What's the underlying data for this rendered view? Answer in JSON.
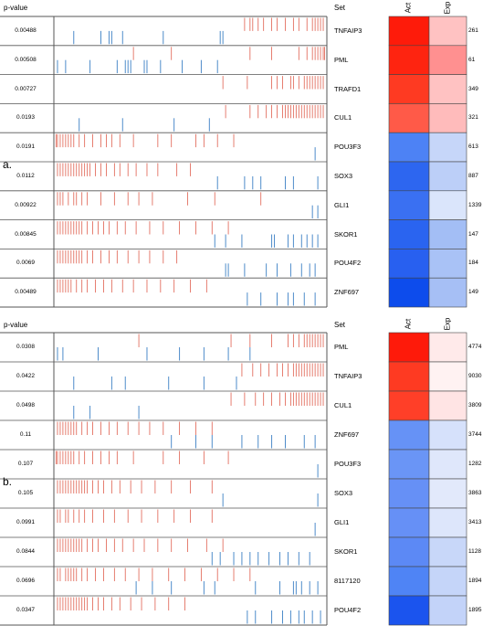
{
  "chart_data": [
    {
      "type": "heatmap",
      "panel_label": "a.",
      "headers": {
        "pvalue": "p-value",
        "set": "Set",
        "act": "Act",
        "exp": "Exp"
      },
      "rows": [
        {
          "p_value": "0.00488",
          "set": "TNFAIP3",
          "count": "261",
          "act_color": "#fe1b0a",
          "exp_color": "#ffc2c2",
          "red": [
            0.7,
            0.72,
            0.73,
            0.75,
            0.77,
            0.8,
            0.82,
            0.85,
            0.88,
            0.9,
            0.93,
            0.95,
            0.96,
            0.97,
            0.98,
            0.99
          ],
          "blue": [
            0.07,
            0.17,
            0.2,
            0.21,
            0.25,
            0.4,
            0.61,
            0.62
          ]
        },
        {
          "p_value": "0.00508",
          "set": "PML",
          "count": "61",
          "act_color": "#fe2410",
          "exp_color": "#ff9090",
          "red": [
            0.29,
            0.43,
            0.72,
            0.8,
            0.9,
            0.93,
            0.95,
            0.96,
            0.97,
            0.98,
            0.99,
            0.995
          ],
          "blue": [
            0.01,
            0.04,
            0.13,
            0.23,
            0.26,
            0.27,
            0.28,
            0.33,
            0.34,
            0.39,
            0.47,
            0.54,
            0.6
          ]
        },
        {
          "p_value": "0.00727",
          "set": "TRAFD1",
          "count": "349",
          "act_color": "#fe3a22",
          "exp_color": "#ffc2c2",
          "red": [
            0.62,
            0.71,
            0.8,
            0.82,
            0.84,
            0.87,
            0.88,
            0.9,
            0.92,
            0.93,
            0.94,
            0.95,
            0.96,
            0.97,
            0.98,
            0.99
          ],
          "blue": []
        },
        {
          "p_value": "0.0193",
          "set": "CUL1",
          "count": "321",
          "act_color": "#ff5a48",
          "exp_color": "#ffbbbb",
          "red": [
            0.63,
            0.72,
            0.75,
            0.78,
            0.8,
            0.82,
            0.84,
            0.85,
            0.86,
            0.87,
            0.88,
            0.89,
            0.9,
            0.91,
            0.92,
            0.93,
            0.94,
            0.95,
            0.96,
            0.97,
            0.98,
            0.99
          ],
          "blue": [
            0.09,
            0.25,
            0.44,
            0.57
          ]
        },
        {
          "p_value": "0.0191",
          "set": "POU3F3",
          "count": "613",
          "act_color": "#4d82f5",
          "exp_color": "#c6d6f9",
          "red": [
            0.005,
            0.01,
            0.02,
            0.03,
            0.04,
            0.05,
            0.06,
            0.07,
            0.09,
            0.11,
            0.14,
            0.17,
            0.19,
            0.21,
            0.24,
            0.29,
            0.38,
            0.43,
            0.52,
            0.55,
            0.6,
            0.66
          ],
          "blue": [
            0.96
          ]
        },
        {
          "p_value": "0.0112",
          "set": "SOX3",
          "count": "887",
          "act_color": "#2d66f0",
          "exp_color": "#bccff8",
          "red": [
            0.01,
            0.02,
            0.03,
            0.04,
            0.05,
            0.06,
            0.07,
            0.08,
            0.09,
            0.1,
            0.11,
            0.12,
            0.13,
            0.15,
            0.17,
            0.19,
            0.22,
            0.24,
            0.27,
            0.3,
            0.34,
            0.38,
            0.45,
            0.5
          ],
          "blue": [
            0.6,
            0.7,
            0.73,
            0.76,
            0.85,
            0.88,
            0.97
          ]
        },
        {
          "p_value": "0.00922",
          "set": "GLI1",
          "count": "1339",
          "act_color": "#3a70f2",
          "exp_color": "#dae5fb",
          "red": [
            0.01,
            0.02,
            0.03,
            0.05,
            0.07,
            0.08,
            0.1,
            0.12,
            0.17,
            0.22,
            0.27,
            0.31,
            0.36,
            0.49,
            0.59,
            0.76
          ],
          "blue": [
            0.95,
            0.97
          ]
        },
        {
          "p_value": "0.00845",
          "set": "SKOR1",
          "count": "147",
          "act_color": "#2a64f0",
          "exp_color": "#a3bef5",
          "red": [
            0.01,
            0.02,
            0.03,
            0.04,
            0.05,
            0.06,
            0.07,
            0.08,
            0.09,
            0.1,
            0.12,
            0.14,
            0.16,
            0.18,
            0.2,
            0.23,
            0.26,
            0.3,
            0.35,
            0.4,
            0.46,
            0.52,
            0.58,
            0.64
          ],
          "blue": [
            0.59,
            0.63,
            0.69,
            0.8,
            0.81,
            0.86,
            0.88,
            0.91,
            0.93,
            0.95,
            0.97
          ]
        },
        {
          "p_value": "0.0069",
          "set": "POU4F2",
          "count": "184",
          "act_color": "#2860f0",
          "exp_color": "#a9c2f6",
          "red": [
            0.01,
            0.02,
            0.03,
            0.04,
            0.05,
            0.06,
            0.07,
            0.08,
            0.09,
            0.1,
            0.12,
            0.14,
            0.17,
            0.2,
            0.23,
            0.27,
            0.31,
            0.35,
            0.4,
            0.45
          ],
          "blue": [
            0.63,
            0.64,
            0.7,
            0.78,
            0.82,
            0.87,
            0.91,
            0.94,
            0.96
          ]
        },
        {
          "p_value": "0.00489",
          "set": "ZNF697",
          "count": "149",
          "act_color": "#0d4cec",
          "exp_color": "#a6bff5",
          "red": [
            0.01,
            0.02,
            0.03,
            0.04,
            0.05,
            0.06,
            0.08,
            0.1,
            0.12,
            0.15,
            0.18,
            0.21,
            0.25,
            0.29,
            0.34,
            0.39,
            0.44,
            0.5,
            0.56
          ],
          "blue": [
            0.71,
            0.76,
            0.82,
            0.86,
            0.88,
            0.92,
            0.96
          ]
        }
      ]
    },
    {
      "type": "heatmap",
      "panel_label": "b.",
      "headers": {
        "pvalue": "p-value",
        "set": "Set",
        "act": "Act",
        "exp": "Exp"
      },
      "rows": [
        {
          "p_value": "0.0308",
          "set": "PML",
          "count": "4774",
          "act_color": "#fe1a0a",
          "exp_color": "#ffeaea",
          "red": [
            0.31,
            0.65,
            0.72,
            0.8,
            0.86,
            0.88,
            0.9,
            0.92,
            0.93,
            0.94,
            0.95,
            0.96,
            0.97,
            0.98,
            0.99
          ],
          "blue": [
            0.01,
            0.03,
            0.16,
            0.34,
            0.46,
            0.55,
            0.64,
            0.72
          ]
        },
        {
          "p_value": "0.0422",
          "set": "TNFAIP3",
          "count": "9030",
          "act_color": "#fe3a22",
          "exp_color": "#fff2f2",
          "red": [
            0.69,
            0.73,
            0.76,
            0.79,
            0.82,
            0.84,
            0.86,
            0.88,
            0.89,
            0.9,
            0.91,
            0.92,
            0.93,
            0.94,
            0.95,
            0.96,
            0.97,
            0.98,
            0.99
          ],
          "blue": [
            0.07,
            0.21,
            0.26,
            0.42,
            0.55,
            0.67
          ]
        },
        {
          "p_value": "0.0498",
          "set": "CUL1",
          "count": "3809",
          "act_color": "#ff3f28",
          "exp_color": "#ffe4e4",
          "red": [
            0.65,
            0.7,
            0.74,
            0.77,
            0.8,
            0.83,
            0.85,
            0.87,
            0.88,
            0.89,
            0.9,
            0.91,
            0.92,
            0.93,
            0.94,
            0.95,
            0.96,
            0.97,
            0.98,
            0.99
          ],
          "blue": [
            0.07,
            0.13,
            0.31
          ]
        },
        {
          "p_value": "0.11",
          "set": "ZNF697",
          "count": "3744",
          "act_color": "#6692f6",
          "exp_color": "#d6e1fb",
          "red": [
            0.01,
            0.02,
            0.03,
            0.04,
            0.05,
            0.06,
            0.07,
            0.08,
            0.1,
            0.12,
            0.14,
            0.17,
            0.2,
            0.23,
            0.27,
            0.31,
            0.35,
            0.4,
            0.46,
            0.52,
            0.58
          ],
          "blue": [
            0.43,
            0.52,
            0.58,
            0.69,
            0.75,
            0.8,
            0.85,
            0.92,
            0.96
          ]
        },
        {
          "p_value": "0.107",
          "set": "POU3F3",
          "count": "1282",
          "act_color": "#6a95f6",
          "exp_color": "#dfe7fb",
          "red": [
            0.005,
            0.01,
            0.02,
            0.03,
            0.04,
            0.05,
            0.06,
            0.07,
            0.09,
            0.11,
            0.14,
            0.17,
            0.2,
            0.23,
            0.29,
            0.4,
            0.46,
            0.55,
            0.64
          ],
          "blue": [
            0.97
          ]
        },
        {
          "p_value": "0.105",
          "set": "SOX3",
          "count": "3863",
          "act_color": "#6690f6",
          "exp_color": "#e2e9fb",
          "red": [
            0.01,
            0.02,
            0.03,
            0.04,
            0.05,
            0.06,
            0.07,
            0.08,
            0.09,
            0.1,
            0.11,
            0.12,
            0.14,
            0.16,
            0.18,
            0.21,
            0.24,
            0.28,
            0.32,
            0.37,
            0.43,
            0.5,
            0.58
          ],
          "blue": [
            0.62,
            0.97
          ]
        },
        {
          "p_value": "0.0991",
          "set": "GLI1",
          "count": "3413",
          "act_color": "#6690f6",
          "exp_color": "#dde6fb",
          "red": [
            0.01,
            0.02,
            0.04,
            0.05,
            0.07,
            0.09,
            0.11,
            0.14,
            0.18,
            0.22,
            0.27,
            0.32,
            0.38,
            0.44,
            0.5,
            0.58
          ],
          "blue": [
            0.96
          ]
        },
        {
          "p_value": "0.0844",
          "set": "SKOR1",
          "count": "1128",
          "act_color": "#5c89f5",
          "exp_color": "#c8d7f9",
          "red": [
            0.01,
            0.02,
            0.03,
            0.04,
            0.05,
            0.06,
            0.07,
            0.08,
            0.09,
            0.1,
            0.12,
            0.14,
            0.16,
            0.19,
            0.22,
            0.25,
            0.29,
            0.33,
            0.38,
            0.43,
            0.49,
            0.56,
            0.62
          ],
          "blue": [
            0.58,
            0.61,
            0.66,
            0.69,
            0.72,
            0.75,
            0.79,
            0.83,
            0.86,
            0.9,
            0.94
          ]
        },
        {
          "p_value": "0.0696",
          "set": "8117120",
          "count": "1894",
          "act_color": "#4f84f5",
          "exp_color": "#c5d5f9",
          "red": [
            0.01,
            0.02,
            0.04,
            0.05,
            0.06,
            0.07,
            0.08,
            0.1,
            0.12,
            0.15,
            0.18,
            0.22,
            0.26,
            0.31,
            0.36,
            0.42,
            0.48,
            0.54,
            0.6,
            0.66,
            0.72
          ],
          "blue": [
            0.3,
            0.36,
            0.43,
            0.55,
            0.59,
            0.74,
            0.83,
            0.88,
            0.89,
            0.91,
            0.94,
            0.97
          ]
        },
        {
          "p_value": "0.0347",
          "set": "POU4F2",
          "count": "1895",
          "act_color": "#1b54ee",
          "exp_color": "#c3d3f9",
          "red": [
            0.01,
            0.02,
            0.03,
            0.04,
            0.05,
            0.06,
            0.07,
            0.08,
            0.09,
            0.1,
            0.11,
            0.12,
            0.14,
            0.16,
            0.18,
            0.21,
            0.24,
            0.28,
            0.32,
            0.37,
            0.42,
            0.48
          ],
          "blue": [
            0.71,
            0.74,
            0.8,
            0.84,
            0.87,
            0.9,
            0.92,
            0.95,
            0.98
          ]
        }
      ]
    }
  ]
}
